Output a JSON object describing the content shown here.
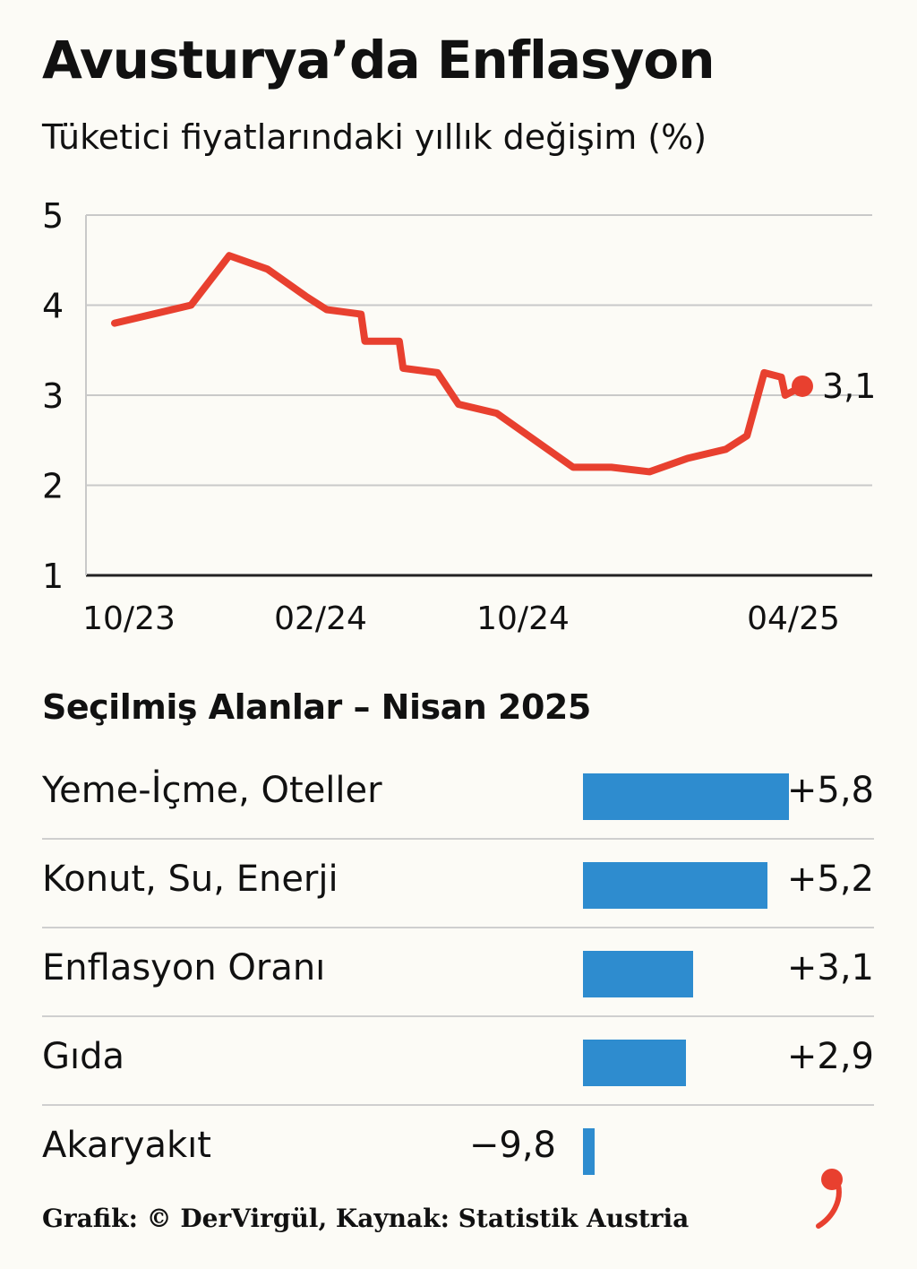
{
  "header": {
    "title": "Avusturya’da Enflasyon",
    "subtitle": "Tüketici fiyatlarındaki yıllık değişim (%)"
  },
  "chart_data": [
    {
      "type": "line",
      "title": "Avusturya’da Enflasyon",
      "subtitle": "Tüketici fiyatlarındaki yıllık değişim (%)",
      "x": [
        "10/23",
        "11/23",
        "12/23",
        "01/24",
        "02/24",
        "03/24",
        "04/24",
        "05/24",
        "06/24",
        "07/24",
        "08/24",
        "09/24",
        "10/24",
        "11/24",
        "12/24",
        "01/25",
        "02/25",
        "03/25",
        "04/25"
      ],
      "x_tick_labels": [
        "10/23",
        "02/24",
        "10/24",
        "04/25"
      ],
      "series": [
        {
          "name": "",
          "color": "#e8402f",
          "points": [
            {
              "x": "10/23",
              "y": 3.8
            },
            {
              "x": "11/23",
              "y": 3.9
            },
            {
              "x": "12/23",
              "y": 4.0
            },
            {
              "x": "01/24",
              "y": 4.55
            },
            {
              "x": "02/24",
              "y": 4.4
            },
            {
              "x": "03/24",
              "y": 4.1
            },
            {
              "x": "04/24",
              "y": 3.95
            },
            {
              "x": "04/24",
              "y": 3.9
            },
            {
              "x": "05/24",
              "y": 3.6
            },
            {
              "x": "05/24",
              "y": 3.6
            },
            {
              "x": "06/24",
              "y": 3.3
            },
            {
              "x": "06/24",
              "y": 3.25
            },
            {
              "x": "07/24",
              "y": 2.9
            },
            {
              "x": "08/24",
              "y": 2.8
            },
            {
              "x": "10/24",
              "y": 2.2
            },
            {
              "x": "11/24",
              "y": 2.2
            },
            {
              "x": "12/24",
              "y": 2.15
            },
            {
              "x": "01/25",
              "y": 2.3
            },
            {
              "x": "02/25",
              "y": 2.4
            },
            {
              "x": "03/25",
              "y": 2.55
            },
            {
              "x": "03/25",
              "y": 3.25
            },
            {
              "x": "03/25",
              "y": 3.2
            },
            {
              "x": "04/25",
              "y": 3.0
            },
            {
              "x": "04/25",
              "y": 3.1
            }
          ],
          "end_label": "3,1"
        }
      ],
      "ylim": [
        1,
        5
      ],
      "y_ticks": [
        "1",
        "2",
        "3",
        "4",
        "5"
      ],
      "grid": true,
      "xlabel": "",
      "ylabel": ""
    },
    {
      "type": "bar",
      "orientation": "horizontal",
      "title": "Seçilmiş Alanlar – Nisan 2025",
      "categories": [
        "Yeme-İçme, Oteller",
        "Konut, Su, Enerji",
        "Enflasyon Oranı",
        "Gıda",
        "Akaryakıt"
      ],
      "values": [
        5.8,
        5.2,
        3.1,
        2.9,
        -9.8
      ],
      "value_labels": [
        "+5,8",
        "+5,2",
        "+3,1",
        "+2,9",
        "−9,8"
      ],
      "color": "#2e8ccf"
    }
  ],
  "footer": {
    "credit": "Grafik: © DerVirgül, Kaynak: Statistik Austria"
  }
}
